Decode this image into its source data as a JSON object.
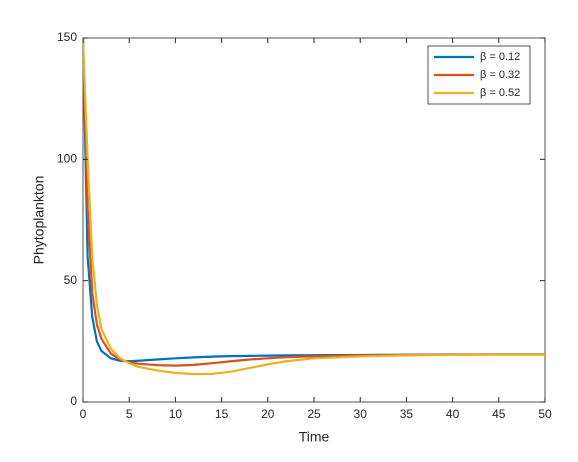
{
  "chart_data": {
    "type": "line",
    "xlabel": "Time",
    "ylabel": "Phytoplankton",
    "x": [
      0,
      0.5,
      1,
      1.5,
      2,
      3,
      4,
      5,
      6,
      8,
      10,
      12,
      14,
      16,
      18,
      20,
      22,
      25,
      30,
      35,
      40,
      45,
      50
    ],
    "series": [
      {
        "name": "β = 0.12",
        "color": "#0072bd",
        "values": [
          150,
          60,
          35,
          25,
          21,
          18,
          17,
          16.8,
          17,
          17.5,
          18,
          18.4,
          18.7,
          18.9,
          19,
          19.1,
          19.2,
          19.3,
          19.4,
          19.5,
          19.6,
          19.6,
          19.6
        ]
      },
      {
        "name": "β = 0.32",
        "color": "#d95319",
        "values": [
          150,
          80,
          45,
          32,
          26,
          20,
          17.5,
          16.3,
          15.8,
          15.2,
          15,
          15.3,
          16,
          16.8,
          17.5,
          18,
          18.5,
          18.8,
          19.2,
          19.4,
          19.5,
          19.6,
          19.6
        ]
      },
      {
        "name": "β = 0.52",
        "color": "#edb120",
        "values": [
          150,
          100,
          60,
          40,
          30,
          22,
          18,
          16,
          14.5,
          13,
          12,
          11.5,
          11.6,
          12.5,
          14,
          15.5,
          16.8,
          18,
          18.8,
          19.2,
          19.4,
          19.5,
          19.5
        ]
      }
    ],
    "xlim": [
      0,
      50
    ],
    "xticks": [
      0,
      5,
      10,
      15,
      20,
      25,
      30,
      35,
      40,
      45,
      50
    ],
    "ylim": [
      0,
      150
    ],
    "yticks": [
      0,
      50,
      100,
      150
    ],
    "grid": false,
    "legend": "top-right"
  }
}
